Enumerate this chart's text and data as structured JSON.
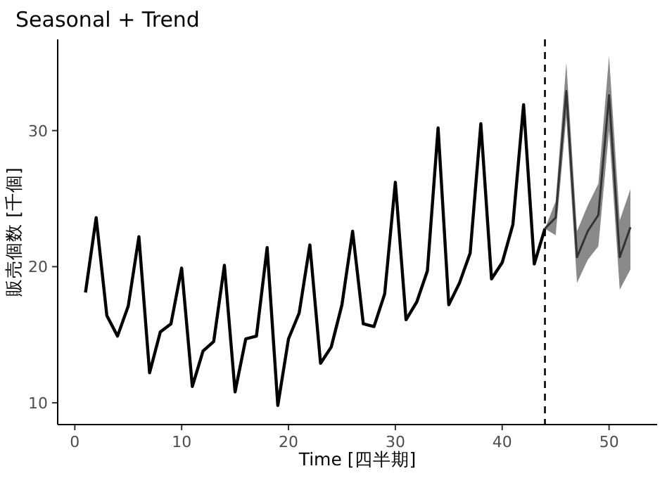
{
  "chart_data": {
    "type": "line",
    "title": "Seasonal + Trend",
    "xlabel": "Time [四半期]",
    "ylabel": "販売個数 [千個]",
    "series": [
      {
        "color": "#000000",
        "x": [
          1,
          2,
          3,
          4,
          5,
          6,
          7,
          8,
          9,
          10,
          11,
          12,
          13,
          14,
          15,
          16,
          17,
          18,
          19,
          20,
          21,
          22,
          23,
          24,
          25,
          26,
          27,
          28,
          29,
          30,
          31,
          32,
          33,
          34,
          35,
          36,
          37,
          38,
          39,
          40,
          41,
          42,
          43,
          44
        ],
        "values": [
          18.1,
          23.6,
          16.4,
          14.9,
          17.1,
          22.2,
          12.2,
          15.2,
          15.8,
          19.9,
          11.2,
          13.8,
          14.5,
          20.1,
          10.8,
          14.7,
          14.9,
          21.4,
          9.8,
          14.7,
          16.6,
          21.6,
          12.9,
          14.1,
          17.2,
          22.6,
          15.8,
          15.6,
          18.0,
          26.2,
          16.1,
          17.4,
          19.7,
          30.2,
          17.2,
          18.8,
          21.0,
          30.5,
          19.1,
          20.3,
          23.1,
          31.9,
          20.2,
          22.8
        ]
      },
      {
        "color": "#333333",
        "x": [
          44,
          45,
          46,
          47,
          48,
          49,
          50,
          51,
          52
        ],
        "values": [
          22.8,
          23.6,
          32.9,
          20.7,
          22.6,
          23.8,
          32.6,
          20.7,
          22.9
        ],
        "lower": [
          22.8,
          22.3,
          31.0,
          18.8,
          20.5,
          21.5,
          30.0,
          18.3,
          19.8
        ],
        "upper": [
          22.8,
          24.8,
          35.0,
          22.6,
          24.5,
          26.1,
          35.5,
          23.4,
          25.7
        ]
      }
    ],
    "xlim": [
      -1.6,
      54.5
    ],
    "ylim": [
      8.4,
      36.7
    ],
    "xticks": [
      0,
      10,
      20,
      30,
      40,
      50
    ],
    "yticks": [
      10,
      20,
      30
    ],
    "ref_lines": [
      {
        "axis": "x",
        "value": 44,
        "line_style": "dashed",
        "color": "#000000"
      }
    ],
    "grid": false,
    "line_style": "solid"
  }
}
